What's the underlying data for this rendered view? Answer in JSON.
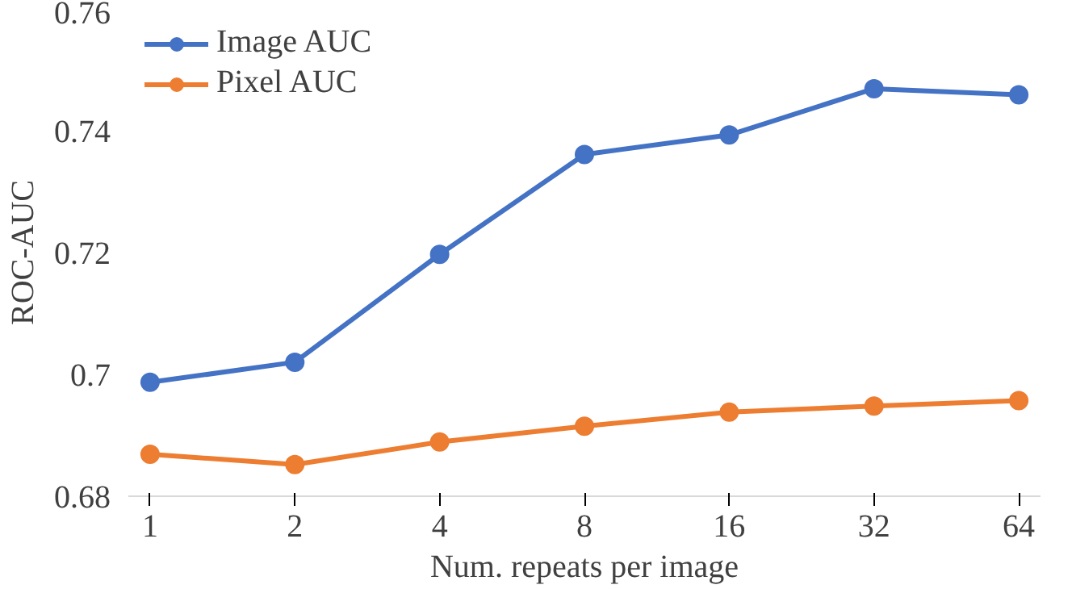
{
  "chart_data": {
    "type": "line",
    "xlabel": "Num. repeats per image",
    "ylabel": "ROC-AUC",
    "categories": [
      "1",
      "2",
      "4",
      "8",
      "16",
      "32",
      "64"
    ],
    "series": [
      {
        "name": "Image AUC",
        "color": "#4472c4",
        "values": [
          0.6987,
          0.702,
          0.7197,
          0.7361,
          0.7393,
          0.7469,
          0.7459
        ]
      },
      {
        "name": "Pixel AUC",
        "color": "#ed7d31",
        "values": [
          0.6869,
          0.6852,
          0.6889,
          0.6915,
          0.6938,
          0.6948,
          0.6957
        ]
      }
    ],
    "ylim": [
      0.68,
      0.76
    ],
    "yticks": [
      0.68,
      {
        "value": 0.7,
        "label": "0.7"
      },
      0.72,
      0.74,
      0.76
    ],
    "grid": false,
    "legend": "top left",
    "marker": "circle",
    "line_style": "solid"
  }
}
